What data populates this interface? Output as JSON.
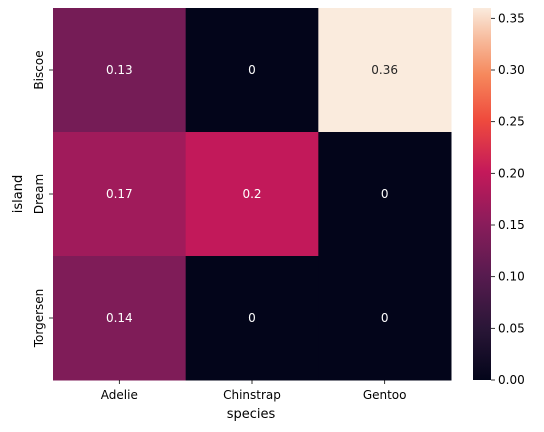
{
  "chart_data": {
    "type": "heatmap",
    "title": "",
    "xlabel": "species",
    "ylabel": "island",
    "x_categories": [
      "Adelie",
      "Chinstrap",
      "Gentoo"
    ],
    "y_categories": [
      "Biscoe",
      "Dream",
      "Torgersen"
    ],
    "values": [
      [
        0.13,
        0,
        0.36
      ],
      [
        0.17,
        0.2,
        0
      ],
      [
        0.14,
        0,
        0
      ]
    ],
    "annotations": [
      [
        "0.13",
        "0",
        "0.36"
      ],
      [
        "0.17",
        "0.2",
        "0"
      ],
      [
        "0.14",
        "0",
        "0"
      ]
    ],
    "colorbar": {
      "vmin": 0,
      "vmax": 0.36,
      "ticks": [
        "0.00",
        "0.05",
        "0.10",
        "0.15",
        "0.20",
        "0.25",
        "0.30",
        "0.35"
      ],
      "colormap": "rocket"
    },
    "grid": false
  }
}
